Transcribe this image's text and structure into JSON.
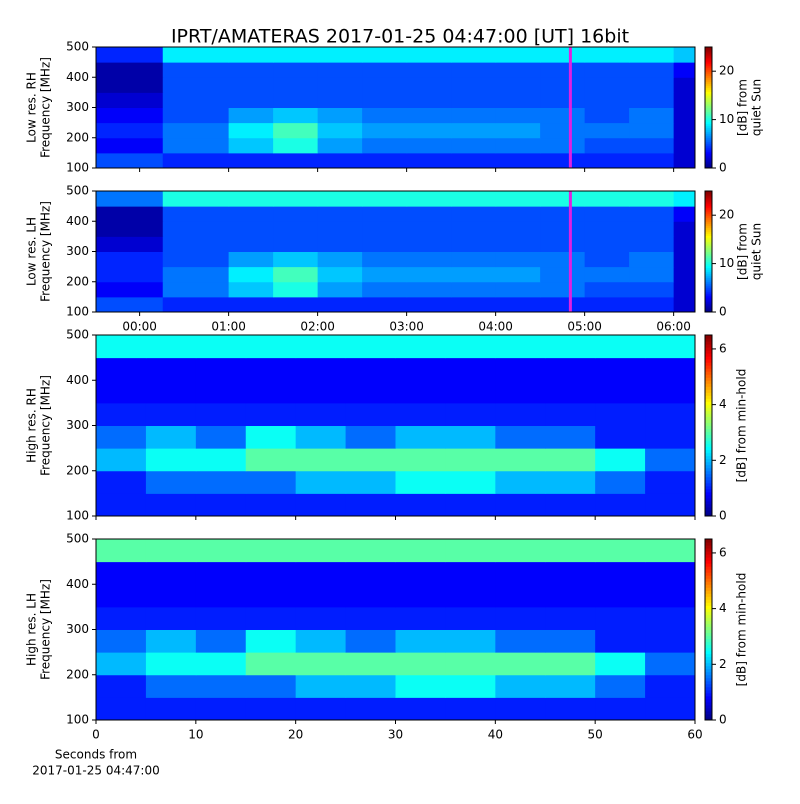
{
  "chart_data": [
    {
      "type": "heatmap",
      "title": "IPRT/AMATERAS 2017-01-25 04:47:00 [UT]   16bit",
      "ylabel": [
        "Low res. RH",
        "Frequency [MHz]"
      ],
      "clabel": [
        "[dB] from",
        "quiet Sun"
      ],
      "colormap": "jet",
      "xlim": [
        -0.49,
        6.24
      ],
      "ylim": [
        100,
        500
      ],
      "clim": [
        0,
        25
      ],
      "xticks": [
        0,
        1,
        2,
        3,
        4,
        5,
        6
      ],
      "show_xtick_labels": false,
      "yticks": [
        100,
        200,
        300,
        400,
        500
      ],
      "cticks": [
        0,
        10,
        20
      ],
      "marker_x": 4.84,
      "marker_color": "#e020e0",
      "x_edges": [
        -0.49,
        0.26,
        1,
        1.5,
        2,
        2.5,
        3,
        3.5,
        4,
        4.5,
        5,
        5.5,
        6,
        6.24
      ],
      "y_edges": [
        100,
        150,
        200,
        250,
        300,
        350,
        400,
        450,
        500
      ],
      "z": [
        [
          5,
          4,
          4,
          4,
          4,
          4,
          4,
          4,
          4,
          4,
          4,
          4,
          2
        ],
        [
          3,
          6,
          8,
          10,
          7,
          6,
          6,
          6,
          6,
          6,
          5,
          5,
          2
        ],
        [
          4,
          6,
          9,
          11,
          8,
          7,
          7,
          7,
          7,
          6,
          6,
          6,
          2
        ],
        [
          3,
          5,
          7,
          8,
          7,
          6,
          6,
          6,
          6,
          6,
          5,
          6,
          2
        ],
        [
          2,
          5,
          5,
          5,
          5,
          5,
          5,
          5,
          5,
          5,
          5,
          5,
          2
        ],
        [
          1,
          5,
          5,
          5,
          5,
          5,
          5,
          5,
          5,
          5,
          5,
          5,
          2
        ],
        [
          1,
          5,
          5,
          5,
          5,
          5,
          5,
          5,
          5,
          5,
          5,
          5,
          3
        ],
        [
          4,
          9,
          9,
          9,
          9,
          9,
          9,
          9,
          9,
          9,
          9,
          9,
          8
        ]
      ]
    },
    {
      "type": "heatmap",
      "ylabel": [
        "Low res. LH",
        "Frequency [MHz]"
      ],
      "clabel": [
        "[dB] from",
        "quiet Sun"
      ],
      "colormap": "jet",
      "xlim": [
        -0.49,
        6.24
      ],
      "ylim": [
        100,
        500
      ],
      "clim": [
        0,
        25
      ],
      "xticks": [
        {
          "value": 0,
          "label": "00:00"
        },
        {
          "value": 1,
          "label": "01:00"
        },
        {
          "value": 2,
          "label": "02:00"
        },
        {
          "value": 3,
          "label": "03:00"
        },
        {
          "value": 4,
          "label": "04:00"
        },
        {
          "value": 5,
          "label": "05:00"
        },
        {
          "value": 6,
          "label": "06:00"
        }
      ],
      "show_xtick_labels": true,
      "yticks": [
        100,
        200,
        300,
        400,
        500
      ],
      "cticks": [
        0,
        10,
        20
      ],
      "marker_x": 4.84,
      "marker_color": "#e020e0",
      "x_edges": [
        -0.49,
        0.26,
        1,
        1.5,
        2,
        2.5,
        3,
        3.5,
        4,
        4.5,
        5,
        5.5,
        6,
        6.24
      ],
      "y_edges": [
        100,
        150,
        200,
        250,
        300,
        350,
        400,
        450,
        500
      ],
      "z": [
        [
          5,
          4,
          4,
          4,
          4,
          4,
          4,
          4,
          4,
          4,
          4,
          4,
          2
        ],
        [
          3,
          6,
          8,
          10,
          7,
          6,
          6,
          6,
          6,
          6,
          5,
          5,
          2
        ],
        [
          4,
          6,
          9,
          11,
          8,
          7,
          7,
          7,
          7,
          6,
          6,
          6,
          2
        ],
        [
          4,
          5,
          7,
          8,
          7,
          6,
          6,
          6,
          6,
          6,
          5,
          6,
          2
        ],
        [
          2,
          5,
          5,
          5,
          5,
          5,
          5,
          5,
          5,
          5,
          5,
          5,
          2
        ],
        [
          1,
          5,
          5,
          5,
          5,
          5,
          5,
          5,
          5,
          5,
          5,
          5,
          2
        ],
        [
          1,
          5,
          5,
          5,
          5,
          5,
          5,
          5,
          5,
          5,
          5,
          5,
          3
        ],
        [
          6,
          10,
          10,
          10,
          10,
          10,
          10,
          10,
          10,
          10,
          10,
          10,
          9
        ]
      ]
    },
    {
      "type": "heatmap",
      "ylabel": [
        "High res. RH",
        "Frequency [MHz]"
      ],
      "clabel": [
        "[dB] from min-hold"
      ],
      "colormap": "jet",
      "xlim": [
        0,
        60
      ],
      "ylim": [
        100,
        500
      ],
      "clim": [
        0,
        6.5
      ],
      "xticks": [
        0,
        10,
        20,
        30,
        40,
        50,
        60
      ],
      "show_xtick_labels": false,
      "yticks": [
        100,
        200,
        300,
        400,
        500
      ],
      "cticks": [
        0,
        2,
        4,
        6
      ],
      "x_edges": [
        0,
        5,
        10,
        15,
        20,
        25,
        30,
        35,
        40,
        45,
        50,
        55,
        60
      ],
      "y_edges": [
        100,
        150,
        200,
        250,
        300,
        350,
        400,
        450,
        500
      ],
      "z": [
        [
          1,
          1,
          1,
          1,
          1,
          1,
          1,
          1,
          1,
          1,
          1,
          1
        ],
        [
          1,
          1.5,
          1.5,
          1.5,
          2,
          2,
          2.5,
          2.5,
          2,
          2,
          1.5,
          1
        ],
        [
          2,
          2.5,
          2.5,
          3,
          3,
          3,
          3,
          3,
          3,
          3,
          2.5,
          1.5
        ],
        [
          1.5,
          2,
          1.5,
          2.5,
          2,
          1.5,
          2,
          2,
          1.5,
          1.5,
          1,
          1
        ],
        [
          1,
          1,
          1,
          1,
          1,
          1,
          1,
          1,
          1,
          1,
          1,
          1
        ],
        [
          0.8,
          0.8,
          0.8,
          0.8,
          0.8,
          0.8,
          0.8,
          0.8,
          0.8,
          0.8,
          0.8,
          0.8
        ],
        [
          0.8,
          0.8,
          0.8,
          0.8,
          0.8,
          0.8,
          0.8,
          0.8,
          0.8,
          0.8,
          0.8,
          0.8
        ],
        [
          2.5,
          2.5,
          2.5,
          2.5,
          2.5,
          2.5,
          2.5,
          2.5,
          2.5,
          2.5,
          2.5,
          2.5
        ]
      ]
    },
    {
      "type": "heatmap",
      "ylabel": [
        "High res. LH",
        "Frequency [MHz]"
      ],
      "clabel": [
        "[dB] from min-hold"
      ],
      "colormap": "jet",
      "xlabel": [
        "Seconds from",
        "2017-01-25 04:47:00"
      ],
      "xlim": [
        0,
        60
      ],
      "ylim": [
        100,
        500
      ],
      "clim": [
        0,
        6.5
      ],
      "xticks": [
        0,
        10,
        20,
        30,
        40,
        50,
        60
      ],
      "show_xtick_labels": true,
      "yticks": [
        100,
        200,
        300,
        400,
        500
      ],
      "cticks": [
        0,
        2,
        4,
        6
      ],
      "x_edges": [
        0,
        5,
        10,
        15,
        20,
        25,
        30,
        35,
        40,
        45,
        50,
        55,
        60
      ],
      "y_edges": [
        100,
        150,
        200,
        250,
        300,
        350,
        400,
        450,
        500
      ],
      "z": [
        [
          1,
          1,
          1,
          1,
          1,
          1,
          1,
          1,
          1,
          1,
          1,
          1
        ],
        [
          1,
          1.5,
          1.5,
          1.5,
          2,
          2,
          2.5,
          2.5,
          2,
          2,
          1.5,
          1
        ],
        [
          2,
          2.5,
          2.5,
          3,
          3,
          3,
          3,
          3,
          3,
          3,
          2.5,
          1.5
        ],
        [
          1.5,
          2,
          1.5,
          2.5,
          2,
          1.5,
          2,
          2,
          1.5,
          1.5,
          1,
          1
        ],
        [
          1,
          1,
          1,
          1,
          1,
          1,
          1,
          1,
          1,
          1,
          1,
          1
        ],
        [
          0.8,
          0.8,
          0.8,
          0.8,
          0.8,
          0.8,
          0.8,
          0.8,
          0.8,
          0.8,
          0.8,
          0.8
        ],
        [
          0.8,
          0.8,
          0.8,
          0.8,
          0.8,
          0.8,
          0.8,
          0.8,
          0.8,
          0.8,
          0.8,
          0.8
        ],
        [
          3,
          3,
          3,
          3,
          3,
          3,
          3,
          3,
          3,
          3,
          3,
          3
        ]
      ]
    }
  ]
}
